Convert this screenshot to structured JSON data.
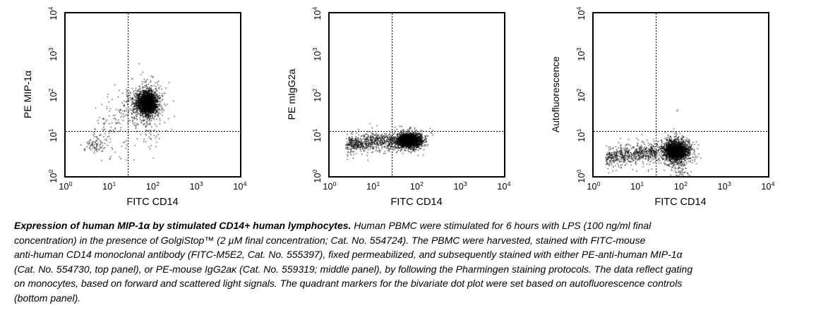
{
  "figure": {
    "colors": {
      "ink": "#000000",
      "background": "#ffffff"
    },
    "caption": {
      "lines": [
        {
          "bold": "Expression of human MIP-1α by stimulated CD14+ human lymphocytes.",
          "text": " Human PBMC were stimulated for 6 hours with LPS (100 ng/ml final"
        },
        {
          "bold": "",
          "text": "concentration) in the presence of GolgiStop™ (2 µM final concentration; Cat. No. 554724). The PBMC were harvested, stained with FITC-mouse"
        },
        {
          "bold": "",
          "text": "anti-human CD14 monoclonal antibody (FITC-M5E2, Cat. No. 555397), fixed permeabilized, and subsequently stained with either PE-anti-human MIP-1α"
        },
        {
          "bold": "",
          "text": "(Cat. No. 554730, top panel), or PE-mouse IgG2aκ (Cat. No. 559319; middle panel), by following the Pharmingen staining protocols. The data reflect gating"
        },
        {
          "bold": "",
          "text": "on monocytes, based on forward and scattered light signals. The quadrant markers for the bivariate dot plot were set based on autofluorescence controls"
        },
        {
          "bold": "",
          "text": "(bottom panel)."
        }
      ]
    }
  },
  "chart_data": [
    {
      "type": "scatter",
      "panel_id": "pe-mip1a",
      "xlabel": "FITC CD14",
      "ylabel": "PE MIP-1α",
      "xscale": "log",
      "yscale": "log",
      "xlim": [
        1,
        10000
      ],
      "ylim": [
        1,
        10000
      ],
      "tick_exponents": [
        0,
        1,
        2,
        3,
        4
      ],
      "quadrant_markers": {
        "x": 27,
        "y": 13
      },
      "cluster_units": "log10",
      "clusters": [
        {
          "name": "monocyte-mip1a-positive-core",
          "kind": "gauss",
          "n": 1900,
          "cx": 1.88,
          "cy": 1.8,
          "sx": 0.11,
          "sy": 0.14
        },
        {
          "name": "core-halo",
          "kind": "gauss",
          "n": 420,
          "cx": 1.88,
          "cy": 1.78,
          "sx": 0.2,
          "sy": 0.28
        },
        {
          "name": "left-shoulder",
          "kind": "gauss",
          "n": 90,
          "cx": 1.6,
          "cy": 1.72,
          "sx": 0.12,
          "sy": 0.22
        },
        {
          "name": "diagonal-smear",
          "kind": "band",
          "n": 130,
          "x0": 0.62,
          "x1": 1.5,
          "y0": 0.95,
          "y1": 1.8,
          "sy": 0.3
        },
        {
          "name": "lower-left-negative-cells",
          "kind": "gauss",
          "n": 65,
          "cx": 0.68,
          "cy": 0.74,
          "sx": 0.13,
          "sy": 0.1
        },
        {
          "name": "below-quadrant-tail",
          "kind": "gauss",
          "n": 40,
          "cx": 1.95,
          "cy": 1.0,
          "sx": 0.11,
          "sy": 0.22
        },
        {
          "name": "sparse-low-band",
          "kind": "band",
          "n": 18,
          "x0": 0.85,
          "x1": 1.65,
          "y0": 0.6,
          "y1": 0.75,
          "sy": 0.18
        }
      ]
    },
    {
      "type": "scatter",
      "panel_id": "pe-migg2a-isotype",
      "xlabel": "FITC CD14",
      "ylabel": "PE mIgG2a",
      "xscale": "log",
      "yscale": "log",
      "xlim": [
        1,
        10000
      ],
      "ylim": [
        1,
        10000
      ],
      "tick_exponents": [
        0,
        1,
        2,
        3,
        4
      ],
      "quadrant_markers": {
        "x": 27,
        "y": 13
      },
      "cluster_units": "log10",
      "clusters": [
        {
          "name": "monocyte-isotype-core",
          "kind": "gauss",
          "n": 1800,
          "cx": 1.82,
          "cy": 0.88,
          "sx": 0.14,
          "sy": 0.085
        },
        {
          "name": "core-halo",
          "kind": "gauss",
          "n": 300,
          "cx": 1.82,
          "cy": 0.86,
          "sx": 0.22,
          "sy": 0.14
        },
        {
          "name": "cd14-negative-band",
          "kind": "band",
          "n": 500,
          "x0": 0.38,
          "x1": 1.45,
          "y0": 0.78,
          "y1": 0.88,
          "sy": 0.09
        },
        {
          "name": "band-halo",
          "kind": "band",
          "n": 120,
          "x0": 0.38,
          "x1": 1.45,
          "y0": 0.76,
          "y1": 0.86,
          "sy": 0.17
        },
        {
          "name": "above-line-specks",
          "kind": "gauss",
          "n": 10,
          "cx": 1.8,
          "cy": 1.13,
          "sx": 0.18,
          "sy": 0.05
        }
      ]
    },
    {
      "type": "scatter",
      "panel_id": "autofluorescence-control",
      "xlabel": "FITC CD14",
      "ylabel": "Autofluorescence",
      "xscale": "log",
      "yscale": "log",
      "xlim": [
        1,
        10000
      ],
      "ylim": [
        1,
        10000
      ],
      "tick_exponents": [
        0,
        1,
        2,
        3,
        4
      ],
      "quadrant_markers": {
        "x": 27,
        "y": 13
      },
      "cluster_units": "log10",
      "clusters": [
        {
          "name": "monocyte-autofluorescence-core",
          "kind": "gauss",
          "n": 1800,
          "cx": 1.89,
          "cy": 0.62,
          "sx": 0.14,
          "sy": 0.12
        },
        {
          "name": "core-halo",
          "kind": "gauss",
          "n": 300,
          "cx": 1.88,
          "cy": 0.6,
          "sx": 0.22,
          "sy": 0.19
        },
        {
          "name": "bottom-edge-tail",
          "kind": "gauss",
          "n": 55,
          "cx": 1.97,
          "cy": 0.15,
          "sx": 0.11,
          "sy": 0.11
        },
        {
          "name": "cd14-negative-band",
          "kind": "band",
          "n": 500,
          "x0": 0.3,
          "x1": 1.45,
          "y0": 0.46,
          "y1": 0.6,
          "sy": 0.11
        },
        {
          "name": "band-halo",
          "kind": "band",
          "n": 120,
          "x0": 0.3,
          "x1": 1.45,
          "y0": 0.44,
          "y1": 0.58,
          "sy": 0.19
        },
        {
          "name": "single-outlier",
          "kind": "gauss",
          "n": 2,
          "cx": 1.89,
          "cy": 1.6,
          "sx": 0.02,
          "sy": 0.02
        }
      ]
    }
  ]
}
